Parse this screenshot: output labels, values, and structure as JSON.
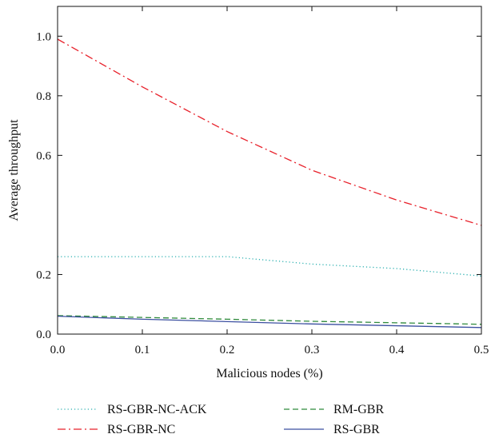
{
  "chart_data": {
    "type": "line",
    "title": "",
    "xlabel": "Malicious nodes (%)",
    "ylabel": "Average throughput",
    "xlim": [
      0,
      0.5
    ],
    "ylim": [
      0,
      1.1
    ],
    "x_ticks": [
      {
        "value": 0.0,
        "label": "0.0"
      },
      {
        "value": 0.1,
        "label": "0.1"
      },
      {
        "value": 0.2,
        "label": "0.2"
      },
      {
        "value": 0.3,
        "label": "0.3"
      },
      {
        "value": 0.4,
        "label": "0.4"
      },
      {
        "value": 0.5,
        "label": "0.5"
      }
    ],
    "y_ticks": [
      {
        "value": 0.0,
        "label": "0.0"
      },
      {
        "value": 0.2,
        "label": "0.2"
      },
      {
        "value": 0.6,
        "label": "0.6"
      },
      {
        "value": 0.8,
        "label": "0.8"
      },
      {
        "value": 1.0,
        "label": "1.0"
      }
    ],
    "grid": false,
    "legend_position": "bottom",
    "series": [
      {
        "name": "RS-GBR-NC-ACK",
        "color": "#2bb0b0",
        "dash": "dotted",
        "x": [
          0.0,
          0.1,
          0.2,
          0.3,
          0.4,
          0.5
        ],
        "y": [
          0.26,
          0.26,
          0.26,
          0.235,
          0.22,
          0.195
        ]
      },
      {
        "name": "RS-GBR-NC",
        "color": "#e8202a",
        "dash": "dash-dot",
        "x": [
          0.0,
          0.1,
          0.2,
          0.3,
          0.4,
          0.5
        ],
        "y": [
          0.99,
          0.83,
          0.68,
          0.55,
          0.45,
          0.365
        ]
      },
      {
        "name": "RM-GBR",
        "color": "#2f8a3c",
        "dash": "dashed",
        "x": [
          0.0,
          0.1,
          0.2,
          0.3,
          0.4,
          0.5
        ],
        "y": [
          0.062,
          0.056,
          0.05,
          0.043,
          0.038,
          0.033
        ]
      },
      {
        "name": "RS-GBR",
        "color": "#3b4fa0",
        "dash": "solid",
        "x": [
          0.0,
          0.1,
          0.2,
          0.3,
          0.4,
          0.5
        ],
        "y": [
          0.06,
          0.05,
          0.042,
          0.034,
          0.028,
          0.022
        ]
      }
    ]
  }
}
